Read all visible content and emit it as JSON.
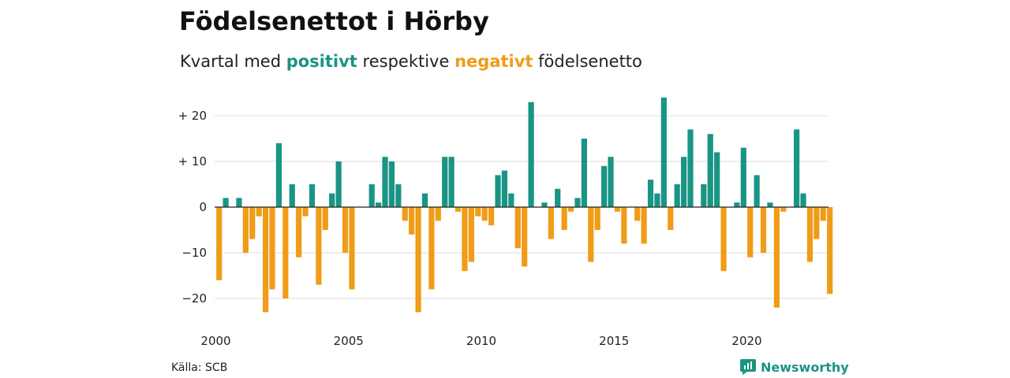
{
  "title": "Födelsenettot i Hörby",
  "subtitle": {
    "prefix": "Kvartal med",
    "positive": "positivt",
    "middle": "respektive",
    "negative": "negativt",
    "suffix": "födelsenetto"
  },
  "source": "Källa: SCB",
  "brand": {
    "name": "Newsworthy",
    "icon": "newsworthy-logo-icon"
  },
  "colors": {
    "positive": "#1a9484",
    "negative": "#f09c18",
    "grid": "#dddddd",
    "zero": "#222222"
  },
  "chart_data": {
    "type": "bar",
    "period": "quarter",
    "x_start": "2000 Q1",
    "ylim": [
      -25,
      25
    ],
    "y_ticks": [
      20,
      10,
      0,
      -10,
      -20
    ],
    "y_tick_labels": [
      "+ 20",
      "+ 10",
      "0",
      "−10",
      "−20"
    ],
    "x_ticks": [
      2000,
      2005,
      2010,
      2015,
      2020
    ],
    "x_tick_labels": [
      "2000",
      "2005",
      "2010",
      "2015",
      "2020"
    ],
    "grid": true,
    "values": [
      -16,
      2,
      0,
      2,
      -10,
      -7,
      -2,
      -23,
      -18,
      14,
      -20,
      5,
      -11,
      -2,
      5,
      -17,
      -5,
      3,
      10,
      -10,
      -18,
      0,
      0,
      5,
      1,
      11,
      10,
      5,
      -3,
      -6,
      -23,
      3,
      -18,
      -3,
      11,
      11,
      -1,
      -14,
      -12,
      -2,
      -3,
      -4,
      7,
      8,
      3,
      -9,
      -13,
      23,
      0,
      1,
      -7,
      4,
      -5,
      -1,
      2,
      15,
      -12,
      -5,
      9,
      11,
      -1,
      -8,
      0,
      -3,
      -8,
      6,
      3,
      24,
      -5,
      5,
      11,
      17,
      0,
      5,
      16,
      12,
      -14,
      0,
      1,
      13,
      -11,
      7,
      -10,
      1,
      -22,
      -1,
      0,
      17,
      3,
      -12,
      -7,
      -3,
      -19
    ]
  }
}
